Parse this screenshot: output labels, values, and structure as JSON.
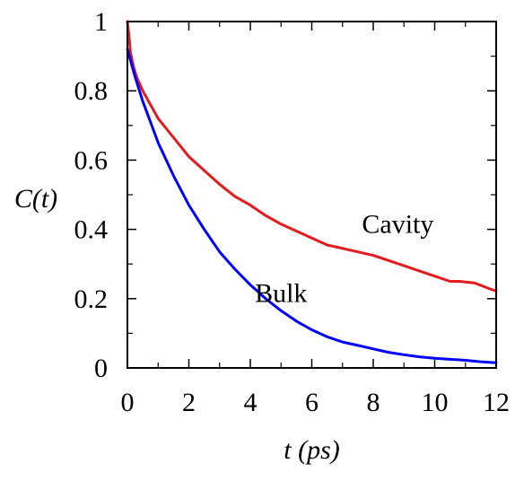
{
  "chart_data": {
    "type": "line",
    "xlabel": "t (ps)",
    "ylabel": "C(t)",
    "xlim": [
      0,
      12
    ],
    "ylim": [
      0,
      1
    ],
    "x_ticks": [
      0,
      2,
      4,
      6,
      8,
      10,
      12
    ],
    "y_ticks": [
      0,
      0.2,
      0.4,
      0.6,
      0.8,
      1
    ],
    "x_tick_labels": [
      "0",
      "2",
      "4",
      "6",
      "8",
      "10",
      "12"
    ],
    "y_tick_labels": [
      "0",
      "0.2",
      "0.4",
      "0.6",
      "0.8",
      "1"
    ],
    "grid": false,
    "series": [
      {
        "name": "Cavity",
        "color": "#e41a1c",
        "x": [
          0,
          0.05,
          0.1,
          0.2,
          0.3,
          0.5,
          0.75,
          1,
          1.5,
          2,
          2.5,
          3,
          3.5,
          4,
          4.5,
          5,
          5.5,
          6,
          6.5,
          7,
          7.5,
          8,
          8.5,
          9,
          9.5,
          10,
          10.5,
          10.8,
          11,
          11.3,
          11.6,
          11.8,
          12
        ],
        "y": [
          1.0,
          0.96,
          0.91,
          0.87,
          0.84,
          0.8,
          0.76,
          0.72,
          0.665,
          0.61,
          0.57,
          0.53,
          0.495,
          0.47,
          0.44,
          0.415,
          0.395,
          0.375,
          0.355,
          0.345,
          0.335,
          0.325,
          0.31,
          0.295,
          0.28,
          0.265,
          0.25,
          0.25,
          0.248,
          0.245,
          0.235,
          0.228,
          0.222
        ]
      },
      {
        "name": "Bulk",
        "color": "#0000ff",
        "x": [
          0,
          0.25,
          0.5,
          0.75,
          1,
          1.5,
          2,
          2.5,
          3,
          3.5,
          4,
          4.5,
          5,
          5.5,
          6,
          6.5,
          7,
          7.5,
          8,
          8.5,
          9,
          9.5,
          10,
          10.5,
          11,
          11.5,
          12
        ],
        "y": [
          0.92,
          0.84,
          0.77,
          0.71,
          0.65,
          0.555,
          0.47,
          0.4,
          0.335,
          0.285,
          0.24,
          0.2,
          0.165,
          0.135,
          0.11,
          0.09,
          0.075,
          0.065,
          0.055,
          0.045,
          0.038,
          0.032,
          0.028,
          0.025,
          0.022,
          0.018,
          0.015
        ]
      }
    ],
    "annotations": [
      {
        "text": "Cavity",
        "x": 8.8,
        "y": 0.39
      },
      {
        "text": "Bulk",
        "x": 5.0,
        "y": 0.19
      }
    ]
  }
}
